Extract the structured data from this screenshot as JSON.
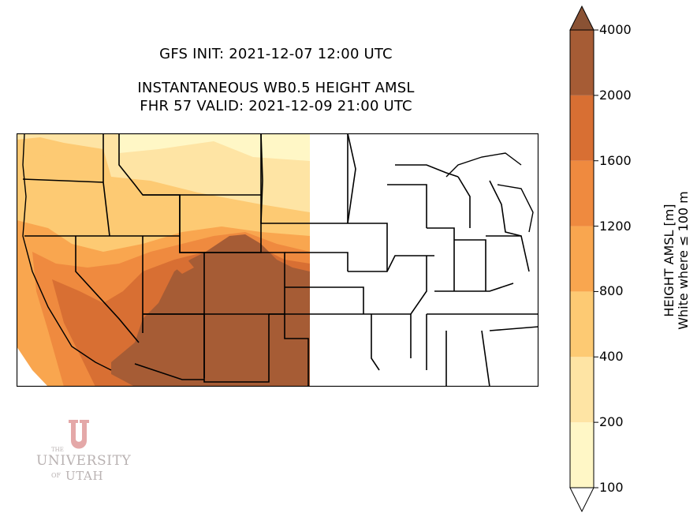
{
  "titles": {
    "init": "GFS INIT: 2021-12-07 12:00 UTC",
    "product": "INSTANTANEOUS WB0.5 HEIGHT AMSL",
    "valid": "FHR 57 VALID: 2021-12-09 21:00 UTC"
  },
  "colorbar": {
    "title_line1": "HEIGHT AMSL [m]",
    "title_line2": "White where ≤ 100 m",
    "ticks": [
      "100",
      "200",
      "400",
      "800",
      "1200",
      "1600",
      "2000",
      "4000"
    ],
    "colors": [
      "#fff7c6",
      "#fee4a4",
      "#fdca73",
      "#f9a64f",
      "#ef8a3f",
      "#d86f33",
      "#a65c35"
    ],
    "extend": "both",
    "over_color": "#8a5234",
    "under_color": "#ffffff"
  },
  "logo": {
    "the": "THE",
    "university": "UNIVERSITY",
    "of": "OF",
    "utah": "UTAH",
    "letter_color": "#e4a8a8"
  }
}
